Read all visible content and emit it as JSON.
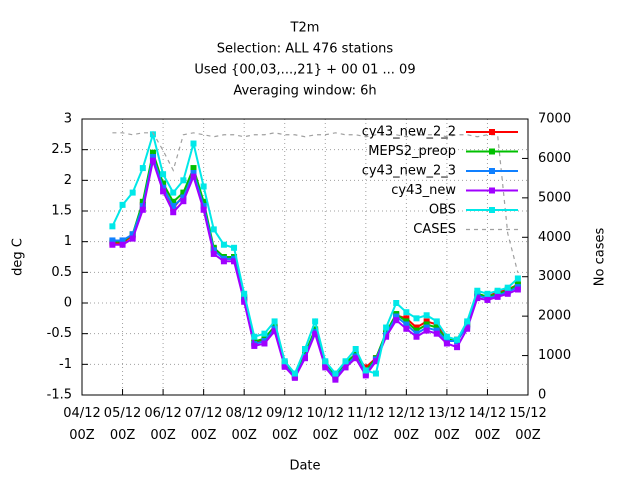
{
  "chart_data": {
    "type": "line",
    "title": [
      "T2m",
      "Selection: ALL    476 stations",
      "Used {00,03,...,21} + 00 01 ... 09",
      "Averaging window:  6h"
    ],
    "xlabel": "Date",
    "ylabel": "deg C",
    "y2label": "No cases",
    "x": [
      4.75,
      5,
      5.25,
      5.5,
      5.75,
      6,
      6.25,
      6.5,
      6.75,
      7,
      7.25,
      7.5,
      7.75,
      8,
      8.25,
      8.5,
      8.75,
      9,
      9.25,
      9.5,
      9.75,
      10,
      10.25,
      10.5,
      10.75,
      11,
      11.25,
      11.5,
      11.75,
      12,
      12.25,
      12.5,
      12.75,
      13,
      13.25,
      13.5,
      13.75,
      14,
      14.25,
      14.5,
      14.75
    ],
    "xlim": [
      4,
      15
    ],
    "xticks": [
      {
        "value": 4,
        "label": "04/12 00Z"
      },
      {
        "value": 5,
        "label": "05/12 00Z"
      },
      {
        "value": 6,
        "label": "06/12 00Z"
      },
      {
        "value": 7,
        "label": "07/12 00Z"
      },
      {
        "value": 8,
        "label": "08/12 00Z"
      },
      {
        "value": 9,
        "label": "09/12 00Z"
      },
      {
        "value": 10,
        "label": "10/12 00Z"
      },
      {
        "value": 11,
        "label": "11/12 00Z"
      },
      {
        "value": 12,
        "label": "12/12 00Z"
      },
      {
        "value": 13,
        "label": "13/12 00Z"
      },
      {
        "value": 14,
        "label": "14/12 00Z"
      },
      {
        "value": 15,
        "label": "15/12 00Z"
      }
    ],
    "ylim": [
      -1.5,
      3
    ],
    "yticks": [
      -1.5,
      -1,
      -0.5,
      0,
      0.5,
      1,
      1.5,
      2,
      2.5,
      3
    ],
    "y2lim": [
      0,
      7000
    ],
    "y2ticks": [
      0,
      1000,
      2000,
      3000,
      4000,
      5000,
      6000,
      7000
    ],
    "grid": true,
    "legend": "top right",
    "series": [
      {
        "name": "cy43_new_2_2",
        "color": "#ff0000",
        "values": [
          0.98,
          0.98,
          1.1,
          1.6,
          2.4,
          1.9,
          1.55,
          1.75,
          2.15,
          1.6,
          0.88,
          0.72,
          0.72,
          0.08,
          -0.65,
          -0.6,
          -0.4,
          -1.0,
          -1.2,
          -0.85,
          -0.45,
          -1.0,
          -1.2,
          -1.0,
          -0.85,
          -1.05,
          -0.9,
          -0.5,
          -0.2,
          -0.25,
          -0.4,
          -0.3,
          -0.35,
          -0.6,
          -0.6,
          -0.35,
          0.15,
          0.1,
          0.18,
          0.22,
          0.3
        ]
      },
      {
        "name": "MEPS2_preop",
        "color": "#00c000",
        "values": [
          1.0,
          1.0,
          1.12,
          1.65,
          2.45,
          1.95,
          1.65,
          1.8,
          2.2,
          1.65,
          0.9,
          0.75,
          0.75,
          0.1,
          -0.63,
          -0.58,
          -0.38,
          -0.98,
          -1.18,
          -0.83,
          -0.43,
          -0.98,
          -1.18,
          -0.98,
          -0.83,
          -1.1,
          -0.9,
          -0.48,
          -0.18,
          -0.3,
          -0.45,
          -0.35,
          -0.4,
          -0.6,
          -0.6,
          -0.35,
          0.15,
          0.1,
          0.15,
          0.2,
          0.3
        ]
      },
      {
        "name": "cy43_new_2_3",
        "color": "#1080ff",
        "values": [
          1.02,
          1.02,
          1.12,
          1.58,
          2.38,
          1.88,
          1.58,
          1.72,
          2.12,
          1.58,
          0.86,
          0.72,
          0.72,
          0.06,
          -0.67,
          -0.62,
          -0.42,
          -1.02,
          -1.2,
          -0.88,
          -0.47,
          -1.02,
          -1.22,
          -1.02,
          -0.87,
          -1.15,
          -0.92,
          -0.52,
          -0.22,
          -0.35,
          -0.5,
          -0.4,
          -0.45,
          -0.62,
          -0.62,
          -0.38,
          0.12,
          0.08,
          0.12,
          0.18,
          0.26
        ]
      },
      {
        "name": "cy43_new",
        "color": "#a000ff",
        "values": [
          0.95,
          0.95,
          1.05,
          1.52,
          2.32,
          1.82,
          1.48,
          1.66,
          2.06,
          1.52,
          0.8,
          0.68,
          0.68,
          0.02,
          -0.7,
          -0.66,
          -0.46,
          -1.04,
          -1.22,
          -0.9,
          -0.5,
          -1.05,
          -1.25,
          -1.05,
          -0.9,
          -1.18,
          -0.95,
          -0.55,
          -0.28,
          -0.42,
          -0.55,
          -0.45,
          -0.5,
          -0.66,
          -0.72,
          -0.42,
          0.08,
          0.05,
          0.1,
          0.15,
          0.22
        ]
      },
      {
        "name": "OBS",
        "color": "#00e8e8",
        "values": [
          1.25,
          1.6,
          1.8,
          2.2,
          2.75,
          2.1,
          1.8,
          2.0,
          2.6,
          1.9,
          1.2,
          0.95,
          0.9,
          0.15,
          -0.55,
          -0.5,
          -0.3,
          -0.95,
          -1.15,
          -0.75,
          -0.3,
          -0.95,
          -1.15,
          -0.95,
          -0.75,
          -1.1,
          -1.15,
          -0.4,
          0.0,
          -0.15,
          -0.25,
          -0.2,
          -0.3,
          -0.55,
          -0.6,
          -0.3,
          0.2,
          0.15,
          0.2,
          0.25,
          0.4
        ]
      },
      {
        "name": "CASES",
        "color": "#a0a0a0",
        "axis": "y2",
        "dash": true,
        "values": [
          6650,
          6650,
          6600,
          6650,
          6650,
          6200,
          5700,
          6600,
          6650,
          6600,
          6550,
          6600,
          6600,
          6550,
          6600,
          6600,
          6650,
          6600,
          6600,
          6550,
          6600,
          6600,
          6650,
          6600,
          6600,
          6550,
          6600,
          6600,
          6600,
          6550,
          6600,
          6600,
          6600,
          6550,
          6600,
          6600,
          6550,
          6600,
          6600,
          4100,
          3100
        ]
      }
    ]
  }
}
